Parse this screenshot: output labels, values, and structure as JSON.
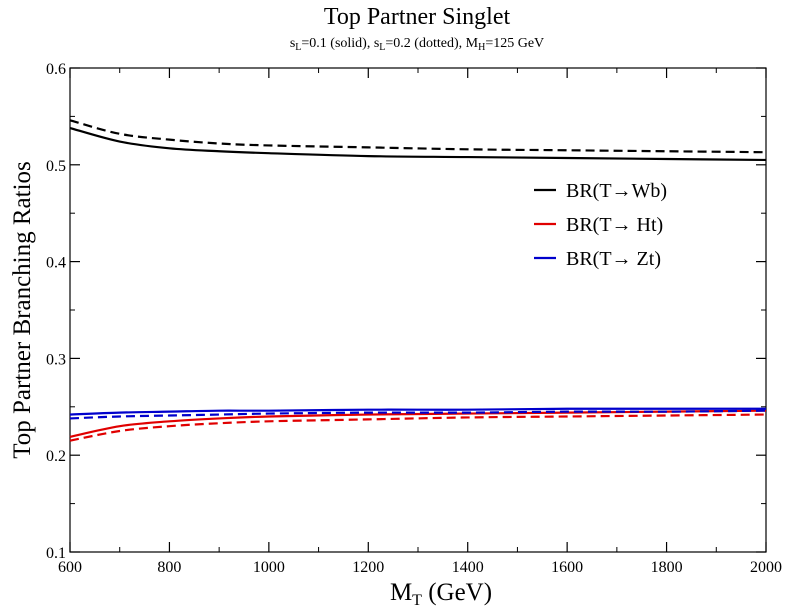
{
  "chart_data": {
    "type": "line",
    "title": "Top Partner Singlet",
    "subtitle": {
      "parts": [
        {
          "text": "s"
        },
        {
          "sub": "L"
        },
        {
          "text": "=0.1 (solid), s"
        },
        {
          "sub": "L"
        },
        {
          "text": "=0.2 (dotted), M"
        },
        {
          "sub": "H"
        },
        {
          "text": "=125 GeV"
        }
      ]
    },
    "xlabel": {
      "main": "M",
      "sub": "T",
      "rest": " (GeV)"
    },
    "ylabel": "Top Partner Branching Ratios",
    "xlim": [
      600,
      2000
    ],
    "ylim": [
      0.1,
      0.6
    ],
    "x_ticks": [
      600,
      800,
      1000,
      1200,
      1400,
      1600,
      1800,
      2000
    ],
    "y_ticks": [
      0.1,
      0.2,
      0.3,
      0.4,
      0.5,
      0.6
    ],
    "y_tick_labels": [
      "0.1",
      "0.2",
      "0.3",
      "0.4",
      "0.5",
      "0.6"
    ],
    "grid": false,
    "legend_position": "upper-right",
    "x": [
      600,
      700,
      800,
      900,
      1000,
      1200,
      1400,
      1600,
      1800,
      2000
    ],
    "series": [
      {
        "name": "BR(T→Wb)",
        "color": "#000000",
        "style": "solid",
        "values": [
          0.538,
          0.524,
          0.517,
          0.514,
          0.512,
          0.509,
          0.508,
          0.507,
          0.506,
          0.505
        ]
      },
      {
        "name": "BR(T→Wb)",
        "color": "#000000",
        "style": "dashed",
        "legend": false,
        "values": [
          0.546,
          0.532,
          0.526,
          0.522,
          0.52,
          0.518,
          0.516,
          0.515,
          0.514,
          0.513
        ]
      },
      {
        "name": "BR(T→ Ht)",
        "color": "#e00000",
        "style": "solid",
        "values": [
          0.219,
          0.23,
          0.235,
          0.238,
          0.24,
          0.242,
          0.243,
          0.244,
          0.245,
          0.246
        ]
      },
      {
        "name": "BR(T→ Ht)",
        "color": "#e00000",
        "style": "dashed",
        "legend": false,
        "values": [
          0.215,
          0.225,
          0.23,
          0.233,
          0.235,
          0.237,
          0.239,
          0.24,
          0.241,
          0.242
        ]
      },
      {
        "name": "BR(T→ Zt)",
        "color": "#0000cc",
        "style": "solid",
        "values": [
          0.242,
          0.244,
          0.245,
          0.246,
          0.246,
          0.247,
          0.247,
          0.248,
          0.248,
          0.248
        ]
      },
      {
        "name": "BR(T→ Zt)",
        "color": "#0000cc",
        "style": "dashed",
        "legend": false,
        "values": [
          0.238,
          0.24,
          0.241,
          0.242,
          0.243,
          0.244,
          0.244,
          0.245,
          0.245,
          0.246
        ]
      }
    ]
  }
}
